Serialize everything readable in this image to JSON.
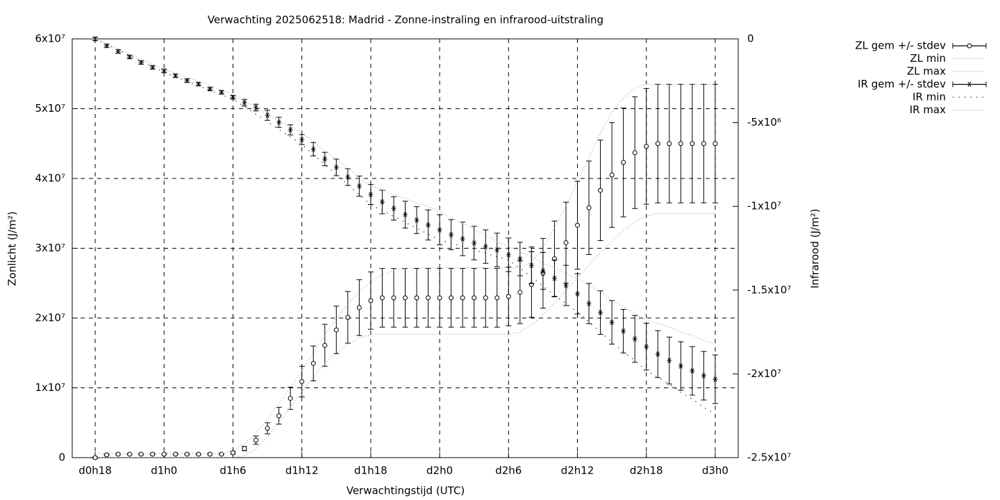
{
  "chart_data": {
    "type": "errorbars",
    "title": "Verwachting 2025062518: Madrid - Zonne-instraling en infrarood-uitstraling",
    "x_label": "Verwachtingstijd (UTC)",
    "y_label": "Zonlicht (J/m²)",
    "y2_label": "Infrarood (J/m²)",
    "xlim": [
      16,
      74
    ],
    "xticks": [
      {
        "value": 18,
        "label": "d0h18"
      },
      {
        "value": 24,
        "label": "d1h0"
      },
      {
        "value": 30,
        "label": "d1h6"
      },
      {
        "value": 36,
        "label": "d1h12"
      },
      {
        "value": 42,
        "label": "d1h18"
      },
      {
        "value": 48,
        "label": "d2h0"
      },
      {
        "value": 54,
        "label": "d2h6"
      },
      {
        "value": 60,
        "label": "d2h12"
      },
      {
        "value": 66,
        "label": "d2h18"
      },
      {
        "value": 72,
        "label": "d3h0"
      }
    ],
    "ylim": [
      0,
      60000000.0
    ],
    "yticks": [
      0,
      {
        "value": 10000000.0,
        "label": "1x10⁷"
      },
      {
        "value": 20000000.0,
        "label": "2x10⁷"
      },
      {
        "value": 30000000.0,
        "label": "3x10⁷"
      },
      {
        "value": 40000000.0,
        "label": "4x10⁷"
      },
      {
        "value": 50000000.0,
        "label": "5x10⁷"
      },
      {
        "value": 60000000.0,
        "label": "6x10⁷"
      }
    ],
    "y2lim": [
      -25000000.0,
      0
    ],
    "y2ticks": [
      {
        "value": -25000000.0,
        "label": "-2.5x10⁷"
      },
      {
        "value": -20000000.0,
        "label": "-2x10⁷"
      },
      {
        "value": -15000000.0,
        "label": "-1.5x10⁷"
      },
      {
        "value": -10000000.0,
        "label": "-1x10⁷"
      },
      {
        "value": -5000000.0,
        "label": "-5x10⁶"
      },
      0
    ],
    "grid": true,
    "legend": "outside-right",
    "x": [
      18,
      19,
      20,
      21,
      22,
      23,
      24,
      25,
      26,
      27,
      28,
      29,
      30,
      31,
      32,
      33,
      34,
      35,
      36,
      37,
      38,
      39,
      40,
      41,
      42,
      43,
      44,
      45,
      46,
      47,
      48,
      49,
      50,
      51,
      52,
      53,
      54,
      55,
      56,
      57,
      58,
      59,
      60,
      61,
      62,
      63,
      64,
      65,
      66,
      67,
      68,
      69,
      70,
      71,
      72
    ],
    "series": [
      {
        "name": "ZL gem +/- stdev",
        "axis": "y",
        "color": "#000000",
        "marker": "circle",
        "dash": "solid",
        "values": [
          0,
          400000.0,
          500000.0,
          500000.0,
          500000.0,
          500000.0,
          500000.0,
          500000.0,
          500000.0,
          500000.0,
          500000.0,
          500000.0,
          700000.0,
          1300000.0,
          2500000.0,
          4200000.0,
          6000000.0,
          8500000.0,
          10900000.0,
          13500000.0,
          16100000.0,
          18300000.0,
          20100000.0,
          21500000.0,
          22500000.0,
          22900000.0,
          22900000.0,
          22900000.0,
          22900000.0,
          22900000.0,
          22900000.0,
          22900000.0,
          22900000.0,
          22900000.0,
          22900000.0,
          22900000.0,
          23100000.0,
          23700000.0,
          24800000.0,
          26400000.0,
          28500000.0,
          30800000.0,
          33300000.0,
          35800000.0,
          38300000.0,
          40500000.0,
          42300000.0,
          43700000.0,
          44600000.0,
          45000000.0,
          45000000.0,
          45000000.0,
          45000000.0,
          45000000.0,
          45000000.0
        ],
        "errors": [
          100000.0,
          100000.0,
          100000.0,
          100000.0,
          100000.0,
          100000.0,
          100000.0,
          100000.0,
          100000.0,
          100000.0,
          100000.0,
          100000.0,
          200000.0,
          300000.0,
          600000.0,
          800000.0,
          1200000.0,
          1600000.0,
          2200000.0,
          2500000.0,
          3000000.0,
          3400000.0,
          3700000.0,
          4000000.0,
          4100000.0,
          4200000.0,
          4200000.0,
          4200000.0,
          4200000.0,
          4200000.0,
          4200000.0,
          4200000.0,
          4200000.0,
          4200000.0,
          4200000.0,
          4200000.0,
          4200000.0,
          4500000.0,
          4700000.0,
          5000000.0,
          5400000.0,
          5800000.0,
          6300000.0,
          6700000.0,
          7200000.0,
          7500000.0,
          7800000.0,
          8000000.0,
          8300000.0,
          8500000.0,
          8500000.0,
          8500000.0,
          8500000.0,
          8500000.0,
          8500000.0
        ]
      },
      {
        "name": "ZL min",
        "axis": "y",
        "color": "#999999",
        "marker": "none",
        "dash": "dotted",
        "values": [
          0,
          0,
          0,
          0,
          0,
          0,
          0,
          0,
          0,
          0,
          0,
          0,
          0,
          300000.0,
          1200000.0,
          3000000.0,
          5000000.0,
          7200000.0,
          9500000.0,
          11500000.0,
          13500000.0,
          15000000.0,
          16200000.0,
          17200000.0,
          17600000.0,
          17700000.0,
          17700000.0,
          17700000.0,
          17700000.0,
          17700000.0,
          17700000.0,
          17700000.0,
          17700000.0,
          17700000.0,
          17700000.0,
          17700000.0,
          17700000.0,
          18000000.0,
          19000000.0,
          20500000.0,
          22200000.0,
          24000000.0,
          25800000.0,
          27600000.0,
          29400000.0,
          31000000.0,
          32500000.0,
          33800000.0,
          34600000.0,
          35000000.0,
          35000000.0,
          35000000.0,
          35000000.0,
          35000000.0,
          35000000.0
        ]
      },
      {
        "name": "ZL max",
        "axis": "y",
        "color": "#999999",
        "marker": "none",
        "dash": "dotted",
        "values": [
          600000.0,
          600000.0,
          600000.0,
          600000.0,
          600000.0,
          600000.0,
          600000.0,
          600000.0,
          600000.0,
          600000.0,
          600000.0,
          600000.0,
          1000000.0,
          2000000.0,
          3500000.0,
          5500000.0,
          7700000.0,
          10000000.0,
          12500000.0,
          15000000.0,
          17500000.0,
          20000000.0,
          22000000.0,
          23800000.0,
          25200000.0,
          26200000.0,
          26800000.0,
          27100000.0,
          27200000.0,
          27200000.0,
          27200000.0,
          27200000.0,
          27200000.0,
          27200000.0,
          27200000.0,
          27200000.0,
          27200000.0,
          27200000.0,
          28000000.0,
          30000000.0,
          33000000.0,
          36000000.0,
          39500000.0,
          43000000.0,
          46500000.0,
          49500000.0,
          51500000.0,
          53000000.0,
          53500000.0,
          53500000.0,
          53500000.0,
          53500000.0,
          53500000.0,
          53500000.0,
          53500000.0
        ]
      },
      {
        "name": "IR gem +/- stdev",
        "axis": "y2",
        "color": "#000000",
        "marker": "star",
        "dash": "solid",
        "values": [
          0,
          -410000.0,
          -750000.0,
          -1080000.0,
          -1410000.0,
          -1700000.0,
          -1910000.0,
          -2200000.0,
          -2490000.0,
          -2700000.0,
          -2990000.0,
          -3190000.0,
          -3480000.0,
          -3810000.0,
          -4100000.0,
          -4560000.0,
          -4980000.0,
          -5430000.0,
          -6010000.0,
          -6590000.0,
          -7170000.0,
          -7670000.0,
          -8250000.0,
          -8790000.0,
          -9290000.0,
          -9740000.0,
          -10120000.0,
          -10490000.0,
          -10820000.0,
          -11110000.0,
          -11400000.0,
          -11690000.0,
          -11940000.0,
          -12190000.0,
          -12400000.0,
          -12600000.0,
          -12890000.0,
          -13140000.0,
          -13520000.0,
          -13850000.0,
          -14300000.0,
          -14720000.0,
          -15220000.0,
          -15800000.0,
          -16340000.0,
          -16920000.0,
          -17450000.0,
          -17910000.0,
          -18370000.0,
          -18820000.0,
          -19200000.0,
          -19530000.0,
          -19820000.0,
          -20110000.0,
          -20320000.0
        ],
        "errors": [
          100000.0,
          100000.0,
          100000.0,
          100000.0,
          100000.0,
          100000.0,
          100000.0,
          100000.0,
          100000.0,
          100000.0,
          100000.0,
          100000.0,
          100000.0,
          200000.0,
          200000.0,
          300000.0,
          300000.0,
          300000.0,
          300000.0,
          400000.0,
          400000.0,
          500000.0,
          500000.0,
          600000.0,
          600000.0,
          700000.0,
          700000.0,
          800000.0,
          800000.0,
          900000.0,
          900000.0,
          900000.0,
          1000000.0,
          1000000.0,
          1000000.0,
          1000000.0,
          1000000.0,
          1000000.0,
          1100000.0,
          1100000.0,
          1100000.0,
          1200000.0,
          1200000.0,
          1200000.0,
          1300000.0,
          1300000.0,
          1300000.0,
          1400000.0,
          1400000.0,
          1400000.0,
          1400000.0,
          1450000.0,
          1450000.0,
          1450000.0,
          1450000.0
        ]
      },
      {
        "name": "IR min",
        "axis": "y2",
        "color": "#333333",
        "marker": "none",
        "dash": "sparse",
        "values": [
          0,
          -330000.0,
          -670000.0,
          -1000000.0,
          -1330000.0,
          -1670000.0,
          -2000000.0,
          -2270000.0,
          -2530000.0,
          -2800000.0,
          -3070000.0,
          -3330000.0,
          -3600000.0,
          -4050000.0,
          -4500000.0,
          -4950000.0,
          -5400000.0,
          -5850000.0,
          -6300000.0,
          -6900000.0,
          -7500000.0,
          -8100000.0,
          -8700000.0,
          -9300000.0,
          -9900000.0,
          -10250000.0,
          -10600000.0,
          -10950000.0,
          -11300000.0,
          -11650000.0,
          -12000000.0,
          -12200000.0,
          -12400000.0,
          -12600000.0,
          -12800000.0,
          -13000000.0,
          -13200000.0,
          -13700000.0,
          -14200000.0,
          -14750000.0,
          -15300000.0,
          -15800000.0,
          -16300000.0,
          -16900000.0,
          -17500000.0,
          -18100000.0,
          -18700000.0,
          -19200000.0,
          -19800000.0,
          -20200000.0,
          -20600000.0,
          -21100000.0,
          -21500000.0,
          -22000000.0,
          -22400000.0
        ]
      },
      {
        "name": "IR max",
        "axis": "y2",
        "color": "#999999",
        "marker": "none",
        "dash": "dotted",
        "values": [
          0,
          -300000.0,
          -600000.0,
          -900000.0,
          -1200000.0,
          -1500000.0,
          -1800000.0,
          -2050000.0,
          -2300000.0,
          -2550000.0,
          -2800000.0,
          -3050000.0,
          -3300000.0,
          -3700000.0,
          -4100000.0,
          -4500000.0,
          -4900000.0,
          -5250000.0,
          -5600000.0,
          -6100000.0,
          -6700000.0,
          -7200000.0,
          -7700000.0,
          -8300000.0,
          -8800000.0,
          -9000000.0,
          -9300000.0,
          -9500000.0,
          -9800000.0,
          -10000000.0,
          -10300000.0,
          -10700000.0,
          -11000000.0,
          -11400000.0,
          -11700000.0,
          -12100000.0,
          -12400000.0,
          -12700000.0,
          -13000000.0,
          -13400000.0,
          -13700000.0,
          -14000000.0,
          -14300000.0,
          -14700000.0,
          -15100000.0,
          -15600000.0,
          -16000000.0,
          -16400000.0,
          -16800000.0,
          -17000000.0,
          -17200000.0,
          -17500000.0,
          -17700000.0,
          -18000000.0,
          -18200000.0
        ]
      }
    ]
  }
}
